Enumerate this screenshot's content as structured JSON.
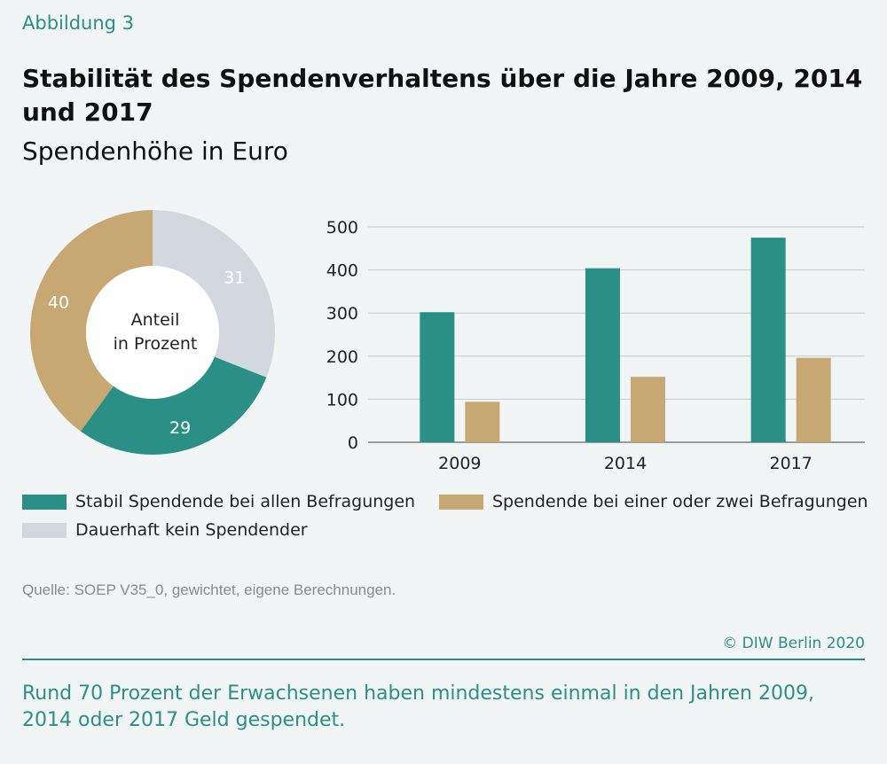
{
  "figure_label": "Abbildung 3",
  "title": "Stabilität des Spendenverhaltens über die Jahre 2009, 2014 und 2017",
  "subtitle": "Spendenhöhe in Euro",
  "colors": {
    "teal": "#2a8f84",
    "tan": "#c7a872",
    "grey": "#d3d8de",
    "accent": "#2a8f84"
  },
  "chart_data": [
    {
      "type": "pie",
      "center_label": [
        "Anteil",
        "in Prozent"
      ],
      "slices": [
        {
          "name": "Dauerhaft kein Spendender",
          "value": 31,
          "color": "#d3d8de"
        },
        {
          "name": "Stabil Spendende bei allen Befragungen",
          "value": 29,
          "color": "#2a8f84"
        },
        {
          "name": "Spendende bei einer oder zwei Befragungen",
          "value": 40,
          "color": "#c7a872"
        }
      ]
    },
    {
      "type": "bar",
      "categories": [
        "2009",
        "2014",
        "2017"
      ],
      "series": [
        {
          "name": "Stabil Spendende bei allen Befragungen",
          "values": [
            302,
            404,
            475
          ],
          "color": "#2a8f84"
        },
        {
          "name": "Spendende bei einer oder zwei Befragungen",
          "values": [
            94,
            152,
            196
          ],
          "color": "#c7a872"
        }
      ],
      "ylim": [
        0,
        500
      ],
      "yticks": [
        "0",
        "100",
        "200",
        "300",
        "400",
        "500"
      ],
      "grid": true
    }
  ],
  "legend": [
    {
      "label": "Stabil Spendende bei allen Befragungen",
      "color": "#2a8f84"
    },
    {
      "label": "Spendende bei einer oder zwei Befragungen",
      "color": "#c7a872"
    },
    {
      "label": "Dauerhaft kein Spendender",
      "color": "#d3d8de"
    }
  ],
  "source": "Quelle: SOEP V35_0, gewichtet, eigene Berechnungen.",
  "copyright": "© DIW Berlin 2020",
  "footnote": "Rund 70 Prozent der Erwachsenen haben mindestens einmal in den Jahren 2009, 2014 oder 2017 Geld gespendet."
}
